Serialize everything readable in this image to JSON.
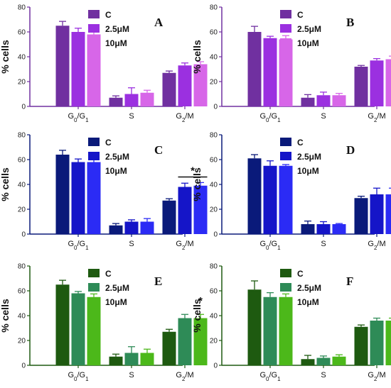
{
  "chart_data": [
    {
      "panel": "A",
      "type": "bar",
      "ylabel": "% cells",
      "ylim": [
        0,
        80
      ],
      "yticks": [
        0,
        20,
        40,
        60,
        80
      ],
      "categories": [
        "G0/G1",
        "S",
        "G2/M"
      ],
      "colors": [
        "#7030A0",
        "#9B30E0",
        "#D766E8"
      ],
      "axis_color": "#7030A0",
      "series": [
        {
          "name": "C",
          "values": [
            65,
            7,
            27
          ],
          "errors": [
            3.5,
            1.5,
            1.5
          ]
        },
        {
          "name": "2.5μM",
          "values": [
            60,
            10,
            33
          ],
          "errors": [
            3,
            5,
            2
          ]
        },
        {
          "name": "10μM",
          "values": [
            58,
            11,
            34
          ],
          "errors": [
            2,
            2,
            2
          ]
        }
      ],
      "significance": []
    },
    {
      "panel": "B",
      "type": "bar",
      "ylabel": "% cells",
      "ylim": [
        0,
        80
      ],
      "yticks": [
        0,
        20,
        40,
        60,
        80
      ],
      "categories": [
        "G0/G1",
        "S",
        "G2/M"
      ],
      "colors": [
        "#7030A0",
        "#9B30E0",
        "#D766E8"
      ],
      "axis_color": "#7030A0",
      "series": [
        {
          "name": "C",
          "values": [
            60,
            7,
            32
          ],
          "errors": [
            4.5,
            2.5,
            1
          ]
        },
        {
          "name": "2.5μM",
          "values": [
            55,
            9,
            37
          ],
          "errors": [
            1.5,
            2.5,
            1.5
          ]
        },
        {
          "name": "10μM",
          "values": [
            54,
            9,
            38
          ],
          "errors": [
            3,
            1.5,
            2.5
          ]
        }
      ],
      "significance": []
    },
    {
      "panel": "C",
      "type": "bar",
      "ylabel": "% cells",
      "ylim": [
        0,
        80
      ],
      "yticks": [
        0,
        20,
        40,
        60,
        80
      ],
      "categories": [
        "G0/G1",
        "S",
        "G2/M"
      ],
      "colors": [
        "#0A1A7A",
        "#1515C8",
        "#2B2BF5"
      ],
      "axis_color": "#0A1A7A",
      "series": [
        {
          "name": "C",
          "values": [
            64,
            7,
            27
          ],
          "errors": [
            3.5,
            1.5,
            1.5
          ]
        },
        {
          "name": "2.5μM",
          "values": [
            58,
            10,
            38
          ],
          "errors": [
            2.5,
            1.5,
            3
          ]
        },
        {
          "name": "10μM",
          "values": [
            58,
            10,
            39
          ],
          "errors": [
            2,
            2.5,
            2.5
          ]
        }
      ],
      "significance": [
        {
          "label": "*",
          "from_series": 1,
          "to_series": 2,
          "category": 2,
          "y": 46,
          "bracket": true
        }
      ]
    },
    {
      "panel": "D",
      "type": "bar",
      "ylabel": "% cells",
      "ylim": [
        0,
        80
      ],
      "yticks": [
        0,
        20,
        40,
        60,
        80
      ],
      "categories": [
        "G0/G1",
        "S",
        "G2/M"
      ],
      "colors": [
        "#0A1A7A",
        "#1515C8",
        "#2B2BF5"
      ],
      "axis_color": "#0A1A7A",
      "series": [
        {
          "name": "C",
          "values": [
            61,
            8,
            29
          ],
          "errors": [
            3,
            2.5,
            1.5
          ]
        },
        {
          "name": "2.5μM",
          "values": [
            55,
            8,
            32
          ],
          "errors": [
            4,
            2,
            5
          ]
        },
        {
          "name": "10μM",
          "values": [
            55,
            8,
            32
          ],
          "errors": [
            1,
            0.5,
            5
          ]
        }
      ],
      "significance": []
    },
    {
      "panel": "E",
      "type": "bar",
      "ylabel": "% cells",
      "ylim": [
        0,
        80
      ],
      "yticks": [
        0,
        20,
        40,
        60,
        80
      ],
      "categories": [
        "G0/G1",
        "S",
        "G2/M"
      ],
      "colors": [
        "#1E5A10",
        "#2E8B57",
        "#4CB81A"
      ],
      "axis_color": "#1E5A10",
      "series": [
        {
          "name": "C",
          "values": [
            65,
            7,
            27
          ],
          "errors": [
            3.5,
            2,
            2
          ]
        },
        {
          "name": "2.5μM",
          "values": [
            58,
            10,
            38
          ],
          "errors": [
            1.5,
            5,
            3
          ]
        },
        {
          "name": "10μM",
          "values": [
            55,
            10,
            38
          ],
          "errors": [
            2.5,
            3,
            3
          ]
        }
      ],
      "significance": [
        {
          "label": "*",
          "from_series": 2,
          "to_series": 2,
          "category": 2,
          "y": 47,
          "bracket": false
        }
      ]
    },
    {
      "panel": "F",
      "type": "bar",
      "ylabel": "% cells",
      "ylim": [
        0,
        80
      ],
      "yticks": [
        0,
        20,
        40,
        60,
        80
      ],
      "categories": [
        "G0/G1",
        "S",
        "G2/M"
      ],
      "colors": [
        "#1E5A10",
        "#2E8B57",
        "#4CB81A"
      ],
      "axis_color": "#1E5A10",
      "series": [
        {
          "name": "C",
          "values": [
            61,
            5,
            31
          ],
          "errors": [
            7,
            3,
            1.5
          ]
        },
        {
          "name": "2.5μM",
          "values": [
            55,
            6,
            36
          ],
          "errors": [
            3.5,
            1.5,
            2
          ]
        },
        {
          "name": "10μM",
          "values": [
            55,
            7,
            36
          ],
          "errors": [
            2.5,
            1.5,
            2
          ]
        }
      ],
      "significance": []
    }
  ]
}
